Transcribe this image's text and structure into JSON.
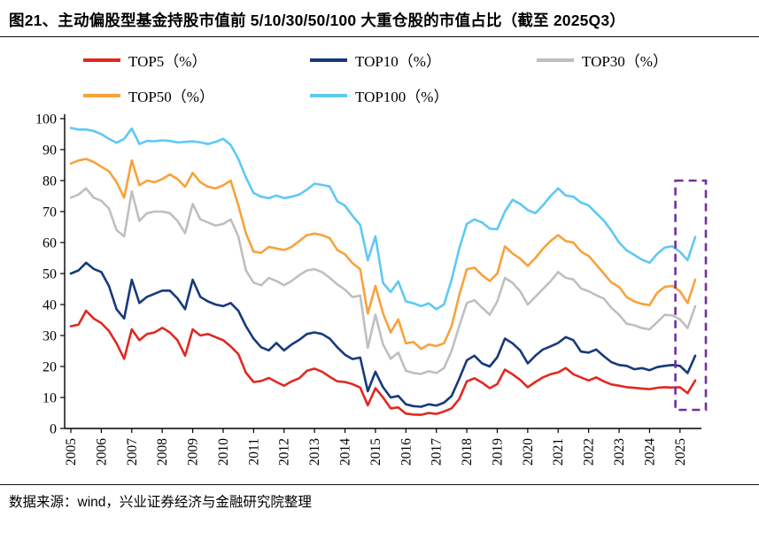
{
  "header": {
    "title": "图21、主动偏股型基金持股市值前 5/10/30/50/100 大重仓股的市值占比（截至 2025Q3）"
  },
  "footer": {
    "source": "数据来源：wind，兴业证券经济与金融研究院整理"
  },
  "chart_data": {
    "type": "line",
    "x_unit": "quarter",
    "x_start": "2005Q1",
    "x_end": "2025Q3",
    "points_per_year": 4,
    "x_tick_labels": [
      "2005",
      "2006",
      "2007",
      "2008",
      "2009",
      "2010",
      "2011",
      "2012",
      "2013",
      "2014",
      "2015",
      "2016",
      "2017",
      "2018",
      "2019",
      "2020",
      "2021",
      "2022",
      "2023",
      "2024",
      "2025"
    ],
    "ylim": [
      0,
      100
    ],
    "y_ticks": [
      0,
      10,
      20,
      30,
      40,
      50,
      60,
      70,
      80,
      90,
      100
    ],
    "grid": false,
    "legend_position": "top",
    "axis_color": "#000000",
    "series": [
      {
        "name": "TOP5（%）",
        "color": "#E02920",
        "values": [
          33,
          33.5,
          38,
          35.5,
          34,
          31.5,
          27.5,
          22.5,
          32,
          28.5,
          30.5,
          31,
          32.5,
          31,
          28.5,
          23.5,
          32,
          30,
          30.5,
          29.5,
          28.5,
          26.5,
          24,
          18,
          15,
          15.3,
          16.3,
          15,
          13.8,
          15.2,
          16.2,
          18.6,
          19.3,
          18.3,
          16.7,
          15.2,
          15,
          14.3,
          13.2,
          7.5,
          13,
          10,
          6.5,
          6.8,
          4.8,
          4.5,
          4.4,
          5,
          4.7,
          5.5,
          6.5,
          9.5,
          15.2,
          16.2,
          14.8,
          13,
          14.3,
          19,
          17.5,
          15.7,
          13.3,
          15,
          16.5,
          17.5,
          18.1,
          19.5,
          17.5,
          16.5,
          15.5,
          16.5,
          15.2,
          14.2,
          13.8,
          13.3,
          13.1,
          12.9,
          12.7,
          13.1,
          13.3,
          13.2,
          13.3,
          11.4,
          15.5
        ]
      },
      {
        "name": "TOP10（%）",
        "color": "#17397C",
        "values": [
          50,
          51,
          53.5,
          51.5,
          50.5,
          46,
          38.5,
          35.5,
          48,
          40.5,
          42.5,
          43.5,
          44.5,
          44.5,
          42,
          38.5,
          48,
          42.5,
          41,
          40,
          39.5,
          40.5,
          38,
          33,
          29,
          26.2,
          25.2,
          27.6,
          25.2,
          27.1,
          28.6,
          30.5,
          31,
          30.5,
          29,
          26.2,
          23.8,
          22.4,
          22.9,
          12,
          18.3,
          13.3,
          10,
          10.5,
          7.8,
          7.2,
          7,
          7.8,
          7.4,
          8.3,
          10.5,
          16,
          22,
          23.5,
          21,
          20,
          23,
          29,
          27.5,
          25.2,
          21,
          23.5,
          25.5,
          26.5,
          27.6,
          29.5,
          28.5,
          24.8,
          24.5,
          25.5,
          23.3,
          21.4,
          20.5,
          20.2,
          19.1,
          19.5,
          18.8,
          19.8,
          20.2,
          20.5,
          20.2,
          17.9,
          23.5
        ]
      },
      {
        "name": "TOP30（%）",
        "color": "#BFBFBF",
        "values": [
          74.5,
          75.5,
          77.5,
          74.5,
          73.5,
          71,
          64,
          62,
          76.5,
          67,
          69.5,
          70,
          70,
          69.5,
          67,
          63,
          72.5,
          67.5,
          66.5,
          65.5,
          66,
          67.5,
          62,
          51,
          47.1,
          46.2,
          48.6,
          47.6,
          46.2,
          47.6,
          49.5,
          51,
          51.4,
          50.5,
          48.6,
          46.5,
          44.8,
          42.4,
          42.9,
          26,
          36.7,
          27.1,
          22.5,
          24.5,
          18.6,
          17.9,
          17.6,
          18.5,
          17.9,
          19.5,
          25,
          33,
          40.5,
          41.4,
          39,
          36.7,
          41,
          48.6,
          47,
          44.3,
          40,
          42.5,
          45,
          47.5,
          50.5,
          48.6,
          48.1,
          45.2,
          44.3,
          43,
          41.9,
          38.9,
          36.7,
          33.8,
          33.3,
          32.4,
          32,
          34.3,
          36.7,
          36.5,
          35.2,
          32.4,
          39.5
        ]
      },
      {
        "name": "TOP50（%）",
        "color": "#F9A13A",
        "values": [
          85.5,
          86.5,
          87,
          86,
          84.5,
          83,
          79.5,
          74.5,
          86.5,
          78.5,
          80,
          79.5,
          80.5,
          82,
          80.5,
          78,
          82.5,
          79.5,
          78,
          77.5,
          78.5,
          80,
          72,
          63,
          57.1,
          56.7,
          58.6,
          58.1,
          57.6,
          58.6,
          60.5,
          62.4,
          62.9,
          62.4,
          61.4,
          57.6,
          56.2,
          53.3,
          51.4,
          37.1,
          46,
          37.1,
          31,
          35.2,
          27.5,
          27.9,
          25.7,
          27.1,
          26.6,
          27.5,
          33,
          43,
          51.4,
          51.9,
          49.5,
          47.6,
          50,
          58.8,
          56.5,
          54.8,
          52.5,
          55,
          58,
          60.5,
          62.4,
          60.5,
          60,
          57.1,
          55.7,
          52.9,
          50,
          47.1,
          45.7,
          42.4,
          41,
          40.2,
          39.8,
          43.8,
          45.7,
          46,
          44.3,
          40.5,
          48
        ]
      },
      {
        "name": "TOP100（%）",
        "color": "#5EC9F4",
        "values": [
          97,
          96.5,
          96.5,
          96,
          95,
          93.5,
          92.2,
          93.5,
          96.8,
          91.8,
          92.8,
          92.7,
          93,
          92.8,
          92.3,
          92.5,
          92.7,
          92.3,
          91.8,
          92.5,
          93.5,
          91.5,
          87,
          81,
          76,
          74.8,
          74.3,
          75.2,
          74.3,
          74.8,
          75.5,
          77.1,
          79,
          78.6,
          78.1,
          73.3,
          71.9,
          68.6,
          65.7,
          54.3,
          62,
          47,
          44,
          47.5,
          41,
          40.4,
          39.5,
          40.4,
          38.5,
          40,
          48,
          58,
          66,
          67.5,
          66.5,
          64.5,
          64.3,
          70,
          73.8,
          72.5,
          70.5,
          69.5,
          72,
          75,
          77.5,
          75.2,
          74.8,
          72.9,
          72,
          69.5,
          67.1,
          63.8,
          60,
          57.5,
          56,
          54.5,
          53.5,
          56.3,
          58.4,
          58.8,
          57,
          54.3,
          61.8
        ]
      }
    ],
    "highlight_box": {
      "color": "#7030A0",
      "x_from_index": 79.4,
      "x_to_index": 83.4,
      "y_from": 6,
      "y_to": 80
    }
  }
}
